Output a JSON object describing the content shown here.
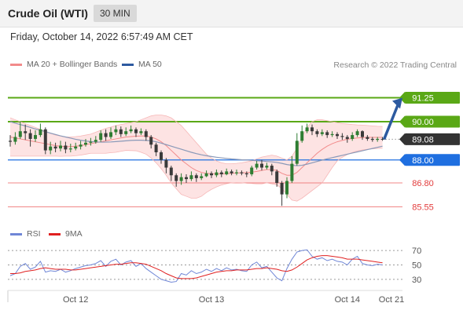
{
  "header": {
    "title": "Crude Oil (WTI)",
    "timeframe": "30 MIN"
  },
  "timestamp": "Friday, October 14, 2022 6:57:49 AM CET",
  "legend": {
    "ma20": {
      "label": "MA 20 + Bollinger Bands",
      "color": "#f28b8b"
    },
    "ma50": {
      "label": "MA 50",
      "color": "#2d5aa0"
    }
  },
  "research": "Research © 2022 Trading Central",
  "rsi_legend": {
    "rsi": {
      "label": "RSI",
      "color": "#6f86d6"
    },
    "ma9": {
      "label": "9MA",
      "color": "#e02020"
    }
  },
  "chart_data": {
    "type": "candlestick",
    "price_axis": {
      "ylim": [
        85.2,
        91.6
      ],
      "levels": [
        {
          "label": "91.25",
          "value": 91.25,
          "kind": "resistance",
          "color": "#5aa816"
        },
        {
          "label": "90.00",
          "value": 90.0,
          "kind": "resistance",
          "color": "#5aa816"
        },
        {
          "label": "89.08",
          "value": 89.08,
          "kind": "last",
          "color": "#333333"
        },
        {
          "label": "88.00",
          "value": 88.0,
          "kind": "pivot",
          "color": "#1f6fe0"
        },
        {
          "label": "86.80",
          "value": 86.8,
          "kind": "support",
          "color": "#ee6a6a"
        },
        {
          "label": "85.55",
          "value": 85.55,
          "kind": "support",
          "color": "#ee6a6a"
        }
      ]
    },
    "x_ticks": [
      "Oct 12",
      "Oct 13",
      "Oct 14",
      "Oct 21"
    ],
    "x_tick_index": [
      13,
      40,
      67,
      78
    ],
    "bars": 75,
    "candles": [
      [
        89.0,
        88.95,
        89.3,
        88.7
      ],
      [
        88.95,
        89.2,
        89.45,
        88.8
      ],
      [
        89.2,
        89.5,
        90.0,
        89.1
      ],
      [
        89.5,
        89.4,
        89.85,
        89.05
      ],
      [
        89.4,
        89.1,
        89.6,
        88.7
      ],
      [
        89.1,
        89.3,
        89.55,
        88.95
      ],
      [
        89.3,
        89.6,
        89.9,
        89.2
      ],
      [
        89.6,
        88.5,
        89.7,
        88.3
      ],
      [
        88.5,
        88.7,
        88.95,
        88.3
      ],
      [
        88.7,
        88.6,
        88.9,
        88.4
      ],
      [
        88.6,
        88.75,
        89.0,
        88.45
      ],
      [
        88.75,
        88.55,
        88.95,
        88.35
      ],
      [
        88.55,
        88.6,
        88.85,
        88.4
      ],
      [
        88.6,
        88.7,
        88.9,
        88.5
      ],
      [
        88.7,
        88.8,
        89.0,
        88.55
      ],
      [
        88.8,
        88.9,
        89.1,
        88.7
      ],
      [
        88.9,
        88.95,
        89.15,
        88.75
      ],
      [
        88.95,
        89.05,
        89.25,
        88.85
      ],
      [
        89.05,
        89.4,
        89.55,
        88.95
      ],
      [
        89.4,
        89.2,
        89.6,
        89.0
      ],
      [
        89.2,
        89.45,
        89.7,
        89.1
      ],
      [
        89.45,
        89.6,
        89.8,
        89.3
      ],
      [
        89.6,
        89.35,
        89.75,
        89.2
      ],
      [
        89.35,
        89.5,
        89.7,
        89.25
      ],
      [
        89.5,
        89.6,
        89.8,
        89.4
      ],
      [
        89.6,
        89.4,
        89.7,
        89.2
      ],
      [
        89.4,
        89.5,
        89.65,
        89.3
      ],
      [
        89.5,
        89.2,
        89.6,
        89.0
      ],
      [
        89.2,
        88.8,
        89.3,
        88.6
      ],
      [
        88.8,
        88.4,
        88.9,
        88.2
      ],
      [
        88.4,
        88.0,
        88.5,
        87.8
      ],
      [
        88.0,
        87.6,
        88.1,
        87.3
      ],
      [
        87.6,
        87.2,
        87.7,
        86.9
      ],
      [
        87.2,
        86.9,
        87.3,
        86.6
      ],
      [
        86.9,
        87.1,
        87.3,
        86.7
      ],
      [
        87.1,
        87.0,
        87.25,
        86.8
      ],
      [
        87.0,
        87.2,
        87.4,
        86.9
      ],
      [
        87.2,
        87.05,
        87.3,
        86.85
      ],
      [
        87.05,
        87.15,
        87.3,
        86.95
      ],
      [
        87.15,
        87.3,
        87.45,
        87.1
      ],
      [
        87.3,
        87.2,
        87.4,
        87.05
      ],
      [
        87.2,
        87.35,
        87.5,
        87.1
      ],
      [
        87.35,
        87.25,
        87.45,
        87.1
      ],
      [
        87.25,
        87.4,
        87.55,
        87.2
      ],
      [
        87.4,
        87.3,
        87.5,
        87.2
      ],
      [
        87.3,
        87.35,
        87.5,
        87.2
      ],
      [
        87.35,
        87.3,
        87.45,
        87.2
      ],
      [
        87.3,
        87.25,
        87.4,
        87.1
      ],
      [
        87.25,
        87.6,
        87.7,
        87.15
      ],
      [
        87.6,
        87.8,
        87.95,
        87.5
      ],
      [
        87.8,
        87.6,
        88.0,
        87.45
      ],
      [
        87.6,
        87.7,
        87.85,
        87.5
      ],
      [
        87.7,
        87.4,
        87.8,
        87.2
      ],
      [
        87.4,
        86.8,
        87.5,
        86.6
      ],
      [
        86.8,
        86.2,
        86.9,
        85.6
      ],
      [
        86.2,
        86.9,
        87.1,
        86.0
      ],
      [
        86.9,
        87.8,
        88.2,
        86.8
      ],
      [
        87.8,
        89.0,
        89.4,
        87.7
      ],
      [
        89.0,
        89.5,
        89.8,
        88.9
      ],
      [
        89.5,
        89.7,
        89.9,
        89.4
      ],
      [
        89.7,
        89.5,
        89.85,
        89.3
      ],
      [
        89.5,
        89.35,
        89.6,
        89.2
      ],
      [
        89.35,
        89.45,
        89.6,
        89.25
      ],
      [
        89.45,
        89.3,
        89.55,
        89.15
      ],
      [
        89.3,
        89.35,
        89.5,
        89.2
      ],
      [
        89.35,
        89.25,
        89.45,
        89.1
      ],
      [
        89.25,
        89.2,
        89.4,
        89.05
      ],
      [
        89.2,
        89.1,
        89.3,
        88.9
      ],
      [
        89.1,
        89.3,
        89.45,
        89.0
      ],
      [
        89.3,
        89.5,
        89.6,
        89.2
      ],
      [
        89.5,
        89.2,
        89.55,
        89.05
      ],
      [
        89.2,
        89.1,
        89.3,
        89.0
      ],
      [
        89.1,
        89.05,
        89.2,
        88.95
      ],
      [
        89.05,
        89.1,
        89.2,
        88.95
      ],
      [
        89.1,
        89.08,
        89.2,
        89.0
      ]
    ],
    "ma20": [
      89.2,
      89.15,
      89.1,
      89.05,
      89.0,
      88.95,
      88.9,
      88.85,
      88.8,
      88.75,
      88.72,
      88.7,
      88.7,
      88.72,
      88.75,
      88.8,
      88.85,
      88.9,
      88.95,
      89.0,
      89.05,
      89.1,
      89.15,
      89.2,
      89.22,
      89.24,
      89.25,
      89.25,
      89.2,
      89.1,
      88.95,
      88.75,
      88.5,
      88.25,
      88.0,
      87.8,
      87.6,
      87.45,
      87.35,
      87.3,
      87.28,
      87.27,
      87.27,
      87.28,
      87.3,
      87.32,
      87.33,
      87.34,
      87.36,
      87.4,
      87.45,
      87.5,
      87.5,
      87.45,
      87.3,
      87.2,
      87.2,
      87.35,
      87.6,
      87.85,
      88.1,
      88.35,
      88.55,
      88.72,
      88.85,
      88.95,
      89.02,
      89.08,
      89.12,
      89.15,
      89.17,
      89.18,
      89.18,
      89.18,
      89.18
    ],
    "bb_upper": [
      90.2,
      90.1,
      90.0,
      89.9,
      89.8,
      89.7,
      89.6,
      89.5,
      89.4,
      89.3,
      89.25,
      89.2,
      89.2,
      89.22,
      89.25,
      89.3,
      89.35,
      89.45,
      89.55,
      89.65,
      89.72,
      89.8,
      89.85,
      89.9,
      89.95,
      90.0,
      90.1,
      90.2,
      90.3,
      90.35,
      90.35,
      90.3,
      90.2,
      90.0,
      89.8,
      89.5,
      89.2,
      88.9,
      88.6,
      88.3,
      88.1,
      87.95,
      87.85,
      87.8,
      87.8,
      87.82,
      87.85,
      87.9,
      87.95,
      88.05,
      88.15,
      88.2,
      88.25,
      88.2,
      88.1,
      88.0,
      88.2,
      88.6,
      89.2,
      89.7,
      90.0,
      90.1,
      90.1,
      90.05,
      90.0,
      89.95,
      89.9,
      89.88,
      89.85,
      89.83,
      89.82,
      89.8,
      89.78,
      89.76,
      89.75
    ],
    "bb_lower": [
      88.2,
      88.2,
      88.2,
      88.2,
      88.2,
      88.2,
      88.2,
      88.2,
      88.2,
      88.2,
      88.19,
      88.2,
      88.2,
      88.22,
      88.25,
      88.3,
      88.35,
      88.35,
      88.35,
      88.35,
      88.38,
      88.4,
      88.45,
      88.5,
      88.49,
      88.48,
      88.4,
      88.3,
      88.1,
      87.85,
      87.55,
      87.2,
      86.8,
      86.5,
      86.2,
      86.1,
      86.0,
      86.0,
      86.1,
      86.3,
      86.46,
      86.59,
      86.69,
      86.76,
      86.8,
      86.82,
      86.81,
      86.78,
      86.77,
      86.75,
      86.75,
      86.8,
      86.75,
      86.7,
      86.5,
      86.2,
      85.9,
      85.85,
      86.0,
      86.2,
      86.4,
      86.6,
      86.8,
      87.2,
      87.6,
      87.95,
      88.14,
      88.28,
      88.39,
      88.47,
      88.52,
      88.56,
      88.58,
      88.6,
      88.61
    ],
    "ma50": [
      90.0,
      89.92,
      89.85,
      89.78,
      89.7,
      89.62,
      89.55,
      89.48,
      89.4,
      89.33,
      89.26,
      89.2,
      89.14,
      89.08,
      89.03,
      88.99,
      88.96,
      88.94,
      88.93,
      88.93,
      88.94,
      88.96,
      88.98,
      89.0,
      89.02,
      89.03,
      89.03,
      89.02,
      89.0,
      88.95,
      88.88,
      88.8,
      88.72,
      88.64,
      88.56,
      88.48,
      88.4,
      88.33,
      88.27,
      88.22,
      88.18,
      88.14,
      88.11,
      88.08,
      88.05,
      88.03,
      88.01,
      88.0,
      87.98,
      87.96,
      87.94,
      87.92,
      87.9,
      87.87,
      87.82,
      87.76,
      87.72,
      87.7,
      87.72,
      87.78,
      87.85,
      87.92,
      87.99,
      88.06,
      88.12,
      88.18,
      88.24,
      88.3,
      88.36,
      88.42,
      88.48,
      88.54,
      88.6,
      88.66,
      88.72
    ],
    "rsi": {
      "ylim": [
        20,
        80
      ],
      "ticks": [
        {
          "label": "70",
          "value": 70
        },
        {
          "label": "50",
          "value": 50
        },
        {
          "label": "30",
          "value": 30
        }
      ],
      "rsi": [
        35,
        38,
        48,
        52,
        44,
        47,
        55,
        40,
        42,
        41,
        44,
        40,
        42,
        45,
        47,
        49,
        50,
        52,
        56,
        48,
        55,
        58,
        50,
        54,
        56,
        48,
        52,
        45,
        40,
        35,
        30,
        28,
        26,
        27,
        38,
        36,
        42,
        38,
        40,
        44,
        41,
        45,
        42,
        46,
        43,
        44,
        42,
        41,
        50,
        54,
        46,
        48,
        40,
        32,
        28,
        45,
        58,
        68,
        70,
        71,
        62,
        58,
        60,
        56,
        58,
        55,
        54,
        50,
        58,
        62,
        52,
        50,
        49,
        51,
        50
      ],
      "ma9": [
        38,
        38,
        39,
        41,
        42,
        43,
        45,
        46,
        45,
        44,
        44,
        44,
        43,
        43,
        44,
        45,
        46,
        47,
        48,
        49,
        50,
        51,
        51,
        52,
        53,
        53,
        52,
        51,
        48,
        45,
        42,
        38,
        35,
        32,
        31,
        31,
        31,
        32,
        34,
        36,
        38,
        40,
        41,
        42,
        42,
        43,
        43,
        43,
        44,
        45,
        45,
        46,
        45,
        44,
        42,
        41,
        43,
        47,
        52,
        57,
        60,
        62,
        63,
        63,
        62,
        61,
        60,
        58,
        58,
        58,
        57,
        56,
        55,
        54,
        53
      ]
    }
  }
}
